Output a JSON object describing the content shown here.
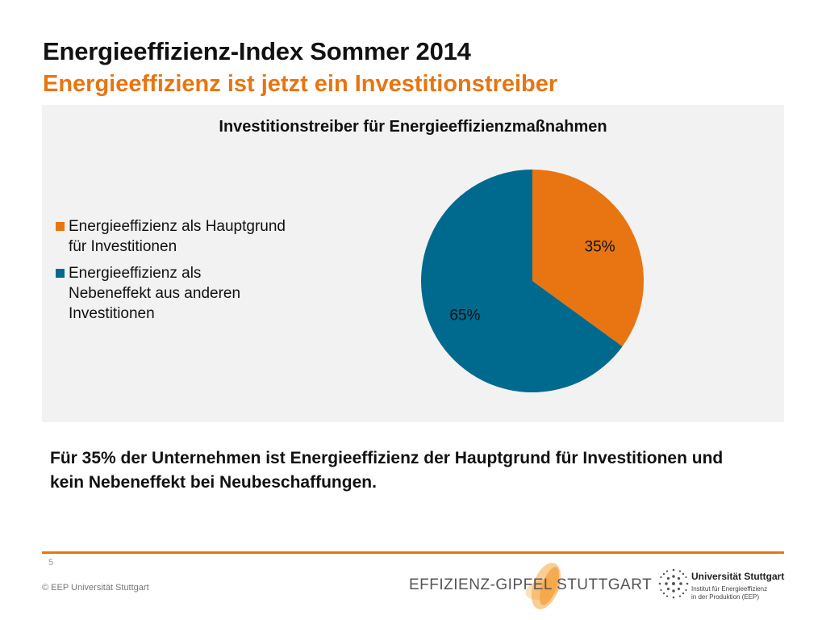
{
  "slide": {
    "title": "Energieeffizienz-Index Sommer 2014",
    "subtitle": "Energieeffizienz ist jetzt ein Investitionstreiber",
    "conclusion": "Für 35% der Unternehmen ist Energieeffizienz der Hauptgrund für Investitionen und kein Nebeneffekt bei Neubeschaffungen.",
    "page_number": "5",
    "copyright": "© EEP Universität Stuttgart"
  },
  "branding": {
    "effizienz_gipfel": "EFFIZIENZ-GIPFEL STUTTGART",
    "university": "Universität Stuttgart",
    "institute_line1": "Institut für Energieeffizienz",
    "institute_line2": "in der Produktion (EEP)"
  },
  "colors": {
    "accent_orange": "#e87511",
    "teal": "#006a8e",
    "panel_bg": "#f2f2f2"
  },
  "chart_data": {
    "type": "pie",
    "title": "Investitionstreiber für Energieeffizienzmaßnahmen",
    "legend_position": "left",
    "slices": [
      {
        "label": "Energieeffizienz als Hauptgrund für Investitionen",
        "value": 35,
        "value_label": "35%",
        "color": "#e87511"
      },
      {
        "label": "Energieeffizienz als Nebeneffekt aus anderen Investitionen",
        "value": 65,
        "value_label": "65%",
        "color": "#006a8e"
      }
    ]
  }
}
